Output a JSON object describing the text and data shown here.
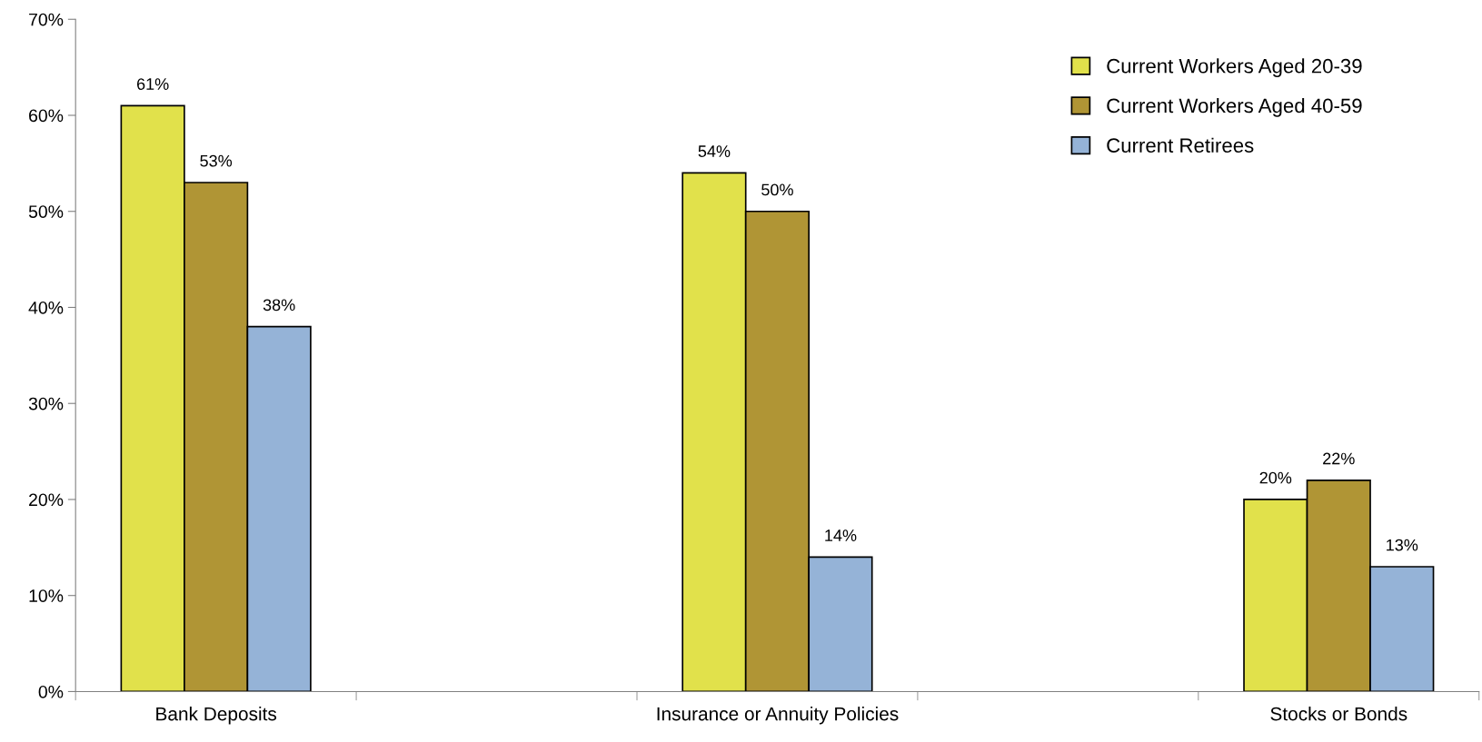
{
  "chart_data": {
    "type": "bar",
    "categories": [
      "Bank Deposits",
      null,
      "Insurance or Annuity Policies",
      null,
      "Stocks or Bonds"
    ],
    "series": [
      {
        "name": "Current Workers Aged 20-39",
        "color": "#e1e14b",
        "values": [
          61,
          null,
          54,
          null,
          20
        ],
        "value_labels": [
          "61%",
          null,
          "54%",
          null,
          "20%"
        ]
      },
      {
        "name": "Current Workers Aged 40-59",
        "color": "#b09535",
        "values": [
          53,
          null,
          50,
          null,
          22
        ],
        "value_labels": [
          "53%",
          null,
          "50%",
          null,
          "22%"
        ]
      },
      {
        "name": "Current Retirees",
        "color": "#95b3d7",
        "values": [
          38,
          null,
          14,
          null,
          13
        ],
        "value_labels": [
          "38%",
          null,
          "14%",
          null,
          "13%"
        ]
      }
    ],
    "ylim": [
      0,
      70
    ],
    "yticks": [
      {
        "value": 0,
        "label": "0%"
      },
      {
        "value": 10,
        "label": "10%"
      },
      {
        "value": 20,
        "label": "20%"
      },
      {
        "value": 30,
        "label": "30%"
      },
      {
        "value": 40,
        "label": "40%"
      },
      {
        "value": 50,
        "label": "50%"
      },
      {
        "value": 60,
        "label": "60%"
      },
      {
        "value": 70,
        "label": "70%"
      }
    ],
    "grid": false,
    "legend": "top right"
  }
}
